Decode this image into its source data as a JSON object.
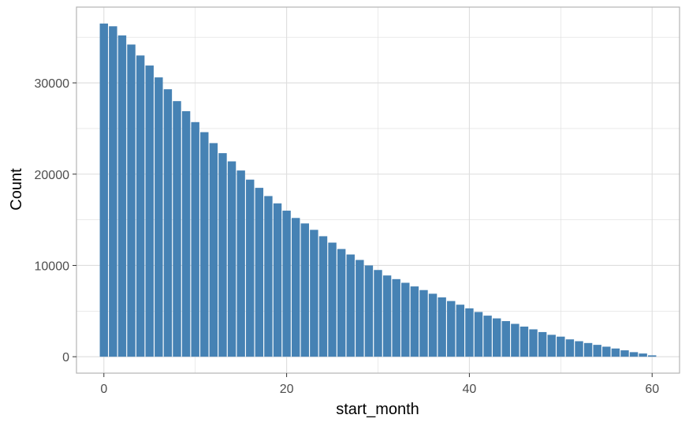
{
  "chart_data": {
    "type": "bar",
    "title": "",
    "xlabel": "start_month",
    "ylabel": "Count",
    "x": [
      0,
      1,
      2,
      3,
      4,
      5,
      6,
      7,
      8,
      9,
      10,
      11,
      12,
      13,
      14,
      15,
      16,
      17,
      18,
      19,
      20,
      21,
      22,
      23,
      24,
      25,
      26,
      27,
      28,
      29,
      30,
      31,
      32,
      33,
      34,
      35,
      36,
      37,
      38,
      39,
      40,
      41,
      42,
      43,
      44,
      45,
      46,
      47,
      48,
      49,
      50,
      51,
      52,
      53,
      54,
      55,
      56,
      57,
      58,
      59,
      60
    ],
    "values": [
      36500,
      36200,
      35200,
      34200,
      33000,
      31900,
      30600,
      29300,
      28000,
      26900,
      25700,
      24600,
      23400,
      22300,
      21400,
      20400,
      19400,
      18500,
      17600,
      16800,
      16000,
      15200,
      14600,
      13900,
      13200,
      12500,
      11800,
      11200,
      10600,
      10000,
      9500,
      8900,
      8500,
      8100,
      7700,
      7300,
      6900,
      6500,
      6100,
      5700,
      5300,
      4900,
      4500,
      4200,
      3900,
      3600,
      3300,
      3000,
      2700,
      2400,
      2200,
      1900,
      1700,
      1500,
      1300,
      1100,
      900,
      700,
      500,
      350,
      150
    ],
    "xlim": [
      -3,
      63
    ],
    "ylim": [
      -1800,
      38300
    ],
    "x_ticks": [
      "0",
      "20",
      "40",
      "60"
    ],
    "y_ticks": [
      "0",
      "10000",
      "20000",
      "30000"
    ],
    "grid": true,
    "colors": {
      "bar": "#4682b4",
      "grid": "#dedede",
      "panel_border": "#b3b3b3"
    }
  }
}
